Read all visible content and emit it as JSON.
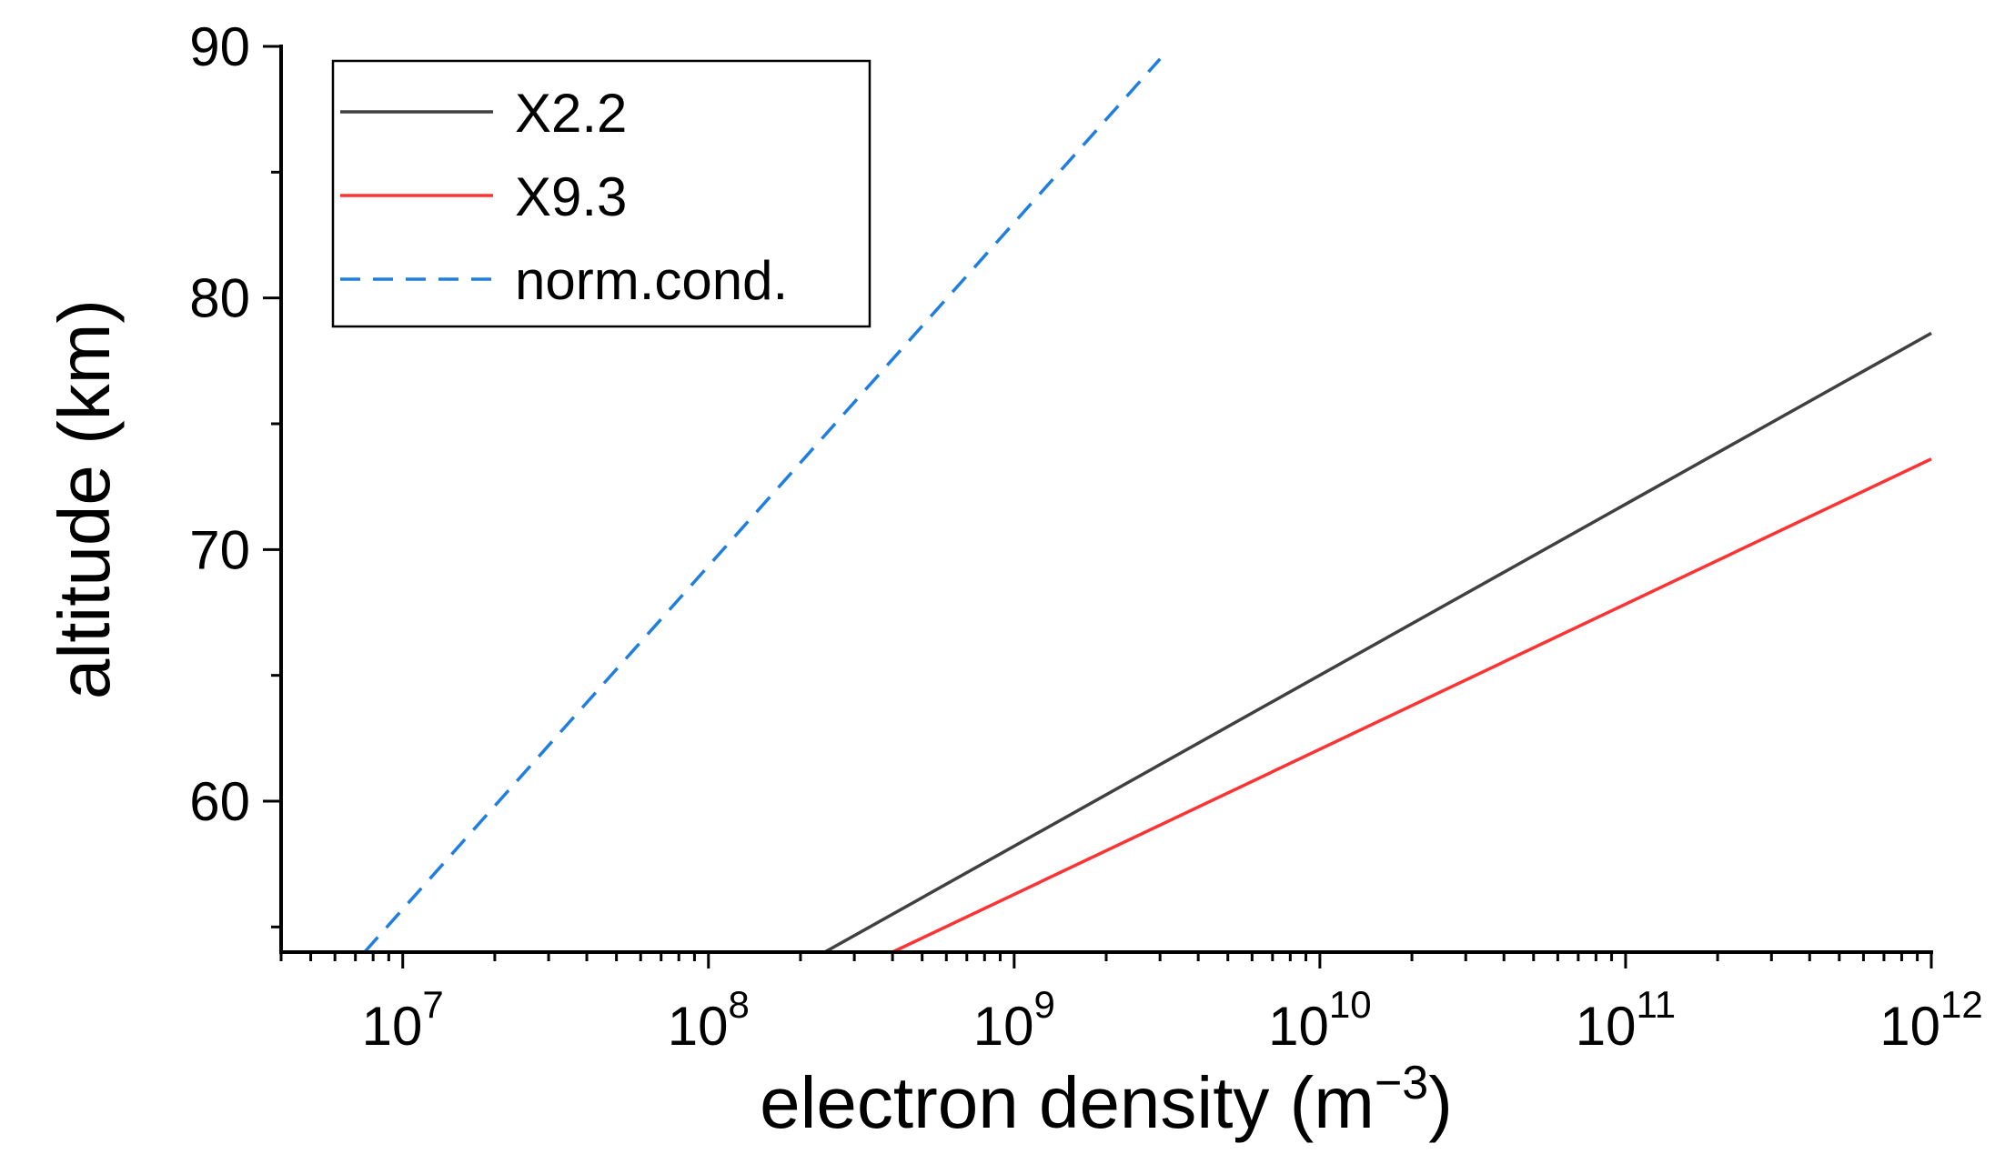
{
  "chart_data": {
    "type": "line",
    "title": "",
    "xlabel": "electron density (m",
    "xlabel_superscript": "−3",
    "xlabel_suffix": ")",
    "ylabel": "altitude (km)",
    "xscale": "log",
    "xlim": [
      4000000.0,
      1000000000000.0
    ],
    "ylim": [
      54,
      90
    ],
    "x_major_ticks": [
      {
        "value": 10000000.0,
        "base": "10",
        "exp": "7"
      },
      {
        "value": 100000000.0,
        "base": "10",
        "exp": "8"
      },
      {
        "value": 1000000000.0,
        "base": "10",
        "exp": "9"
      },
      {
        "value": 10000000000.0,
        "base": "10",
        "exp": "10"
      },
      {
        "value": 100000000000.0,
        "base": "10",
        "exp": "11"
      },
      {
        "value": 1000000000000.0,
        "base": "10",
        "exp": "12"
      }
    ],
    "y_major_ticks": [
      {
        "value": 60,
        "label": "60"
      },
      {
        "value": 70,
        "label": "70"
      },
      {
        "value": 80,
        "label": "80"
      },
      {
        "value": 90,
        "label": "90"
      }
    ],
    "y_minor_step": 5,
    "grid": false,
    "legend_position": "top-left",
    "series": [
      {
        "name": "X2.2",
        "color": "#404040",
        "dash": "solid",
        "x": [
          240000000.0,
          1000000000000.0
        ],
        "y": [
          54,
          78.6
        ]
      },
      {
        "name": "X9.3",
        "color": "#ff3333",
        "dash": "solid",
        "x": [
          400000000.0,
          1000000000000.0
        ],
        "y": [
          54,
          73.6
        ]
      },
      {
        "name": "norm.cond.",
        "color": "#1f7ee0",
        "dash": "dashed",
        "x": [
          7500000.0,
          3000000000.0
        ],
        "y": [
          54,
          89.5
        ]
      }
    ]
  }
}
